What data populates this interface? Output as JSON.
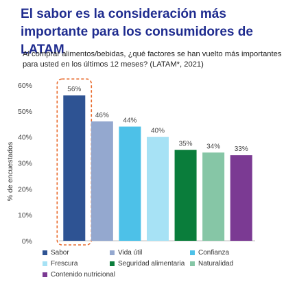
{
  "title": "El sabor es la consideración más importante para los consumidores de LATAM",
  "subtitle": "Al comprar alimentos/bebidas, ¿qué factores se han vuelto más importantes para usted en los últimos 12 meses? (LATAM*, 2021)",
  "chart_data": {
    "type": "bar",
    "categories": [
      "Sabor",
      "Vida útil",
      "Confianza",
      "Frescura",
      "Seguridad alimentaria",
      "Naturalidad",
      "Contenido nutricional"
    ],
    "values": [
      56,
      46,
      44,
      40,
      35,
      34,
      33
    ],
    "value_labels": [
      "56%",
      "46%",
      "44%",
      "40%",
      "35%",
      "34%",
      "33%"
    ],
    "colors": [
      "#2e5393",
      "#94a8cf",
      "#4dc1e8",
      "#a7e2f5",
      "#0a7d3b",
      "#86c6a6",
      "#7b3a93"
    ],
    "ylabel": "% de encuestados",
    "ylim": [
      0,
      60
    ],
    "yticks": [
      "0%",
      "10%",
      "20%",
      "30%",
      "40%",
      "50%",
      "60%"
    ],
    "highlight": "Sabor",
    "legend_position": "bottom",
    "grid": false
  }
}
